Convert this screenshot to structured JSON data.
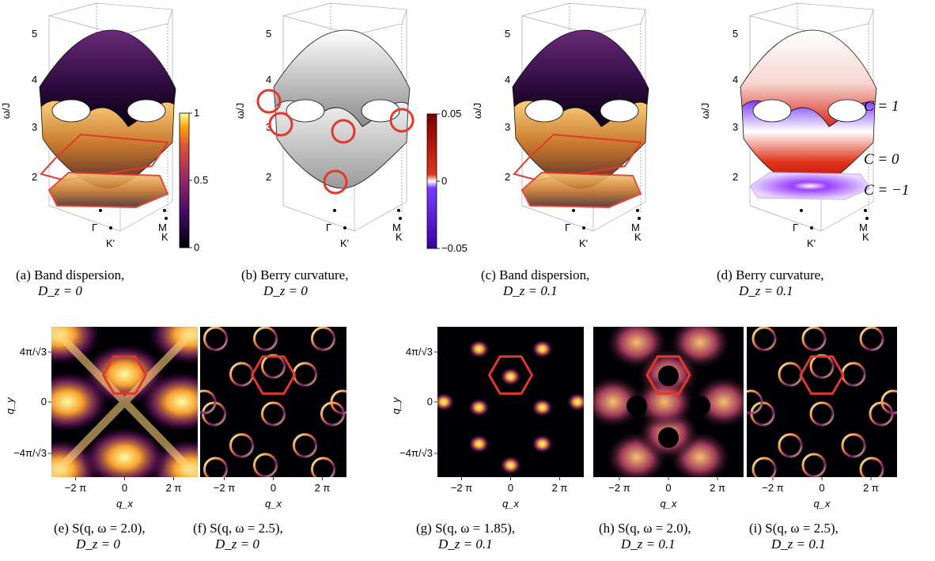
{
  "top_panels": {
    "z_ticks": [
      "5",
      "4",
      "3",
      "2"
    ],
    "z_axis_label": "ω/J",
    "point_labels": {
      "gamma": "Γ",
      "kprime": "K'",
      "m": "M",
      "k": "K"
    }
  },
  "colorbars": {
    "a": {
      "ticks": [
        "1",
        "0.5",
        "0"
      ]
    },
    "b": {
      "ticks": [
        "0.05",
        "0",
        "−0.05"
      ]
    }
  },
  "chern_labels": [
    "C = 1",
    "C = 0",
    "C = −1"
  ],
  "captions": {
    "a": {
      "tag": "(a)",
      "line1": "Band dispersion,",
      "line2": "D_z = 0"
    },
    "b": {
      "tag": "(b)",
      "line1": "Berry curvature,",
      "line2": "D_z = 0"
    },
    "c": {
      "tag": "(c)",
      "line1": "Band dispersion,",
      "line2": "D_z = 0.1"
    },
    "d": {
      "tag": "(d)",
      "line1": "Berry curvature,",
      "line2": "D_z = 0.1"
    },
    "e": {
      "tag": "(e)",
      "line1": "S(q, ω = 2.0),",
      "line2": "D_z = 0"
    },
    "f": {
      "tag": "(f)",
      "line1": "S(q, ω = 2.5),",
      "line2": "D_z = 0"
    },
    "g": {
      "tag": "(g)",
      "line1": "S(q, ω = 1.85),",
      "line2": "D_z = 0.1"
    },
    "h": {
      "tag": "(h)",
      "line1": "S(q, ω = 2.0),",
      "line2": "D_z = 0.1"
    },
    "i": {
      "tag": "(i)",
      "line1": "S(q, ω = 2.5),",
      "line2": "D_z = 0.1"
    }
  },
  "heatmaps": {
    "y_label": "q_y",
    "x_label": "q_x",
    "y_ticks": [
      "4π/√3",
      "0",
      "−4π/√3"
    ],
    "x_ticks": [
      "−2 π",
      "0",
      "2 π"
    ]
  },
  "colors": {
    "hexagon": "#e0392b",
    "inferno_bright": "#fcffa4",
    "inferno_dark": "#000004"
  }
}
